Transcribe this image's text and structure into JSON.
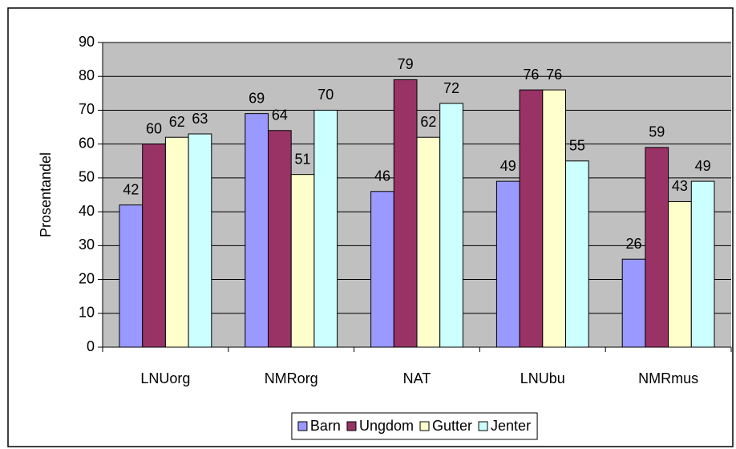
{
  "chart_data": {
    "type": "bar",
    "y_label": "Prosentandel",
    "categories": [
      "LNUorg",
      "NMRorg",
      "NAT",
      "LNUbu",
      "NMRmus"
    ],
    "series": [
      {
        "name": "Barn",
        "color": "#9999ff",
        "values": [
          42,
          69,
          46,
          49,
          26
        ]
      },
      {
        "name": "Ungdom",
        "color": "#993366",
        "values": [
          60,
          64,
          79,
          76,
          59
        ]
      },
      {
        "name": "Gutter",
        "color": "#ffffcc",
        "values": [
          62,
          51,
          62,
          76,
          43
        ]
      },
      {
        "name": "Jenter",
        "color": "#ccffff",
        "values": [
          63,
          70,
          72,
          55,
          49
        ]
      }
    ],
    "ylim": [
      0,
      90
    ],
    "yticks": [
      0,
      10,
      20,
      30,
      40,
      50,
      60,
      70,
      80,
      90
    ],
    "grid": true,
    "legend": "bottom",
    "plot_background": "#c0c0c0"
  }
}
